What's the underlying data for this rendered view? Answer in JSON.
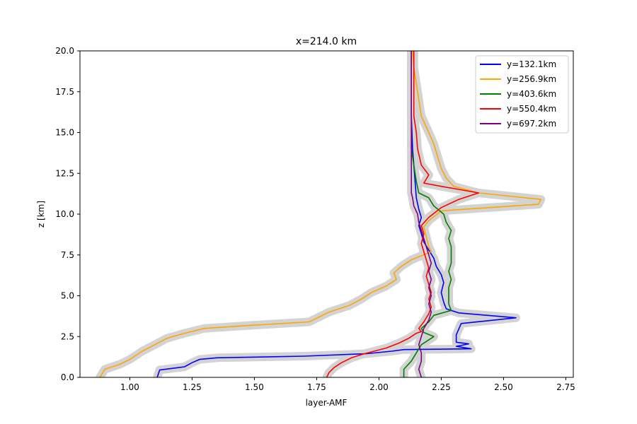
{
  "chart_data": {
    "type": "line",
    "title": "x=214.0 km",
    "xlabel": "layer-AMF",
    "ylabel": "z [km]",
    "xlim": [
      0.8,
      2.78
    ],
    "ylim": [
      0,
      20
    ],
    "xticks": [
      "1.00",
      "1.25",
      "1.50",
      "1.75",
      "2.00",
      "2.25",
      "2.50",
      "2.75"
    ],
    "yticks": [
      "0.0",
      "2.5",
      "5.0",
      "7.5",
      "10.0",
      "12.5",
      "15.0",
      "17.5",
      "20.0"
    ],
    "grid": false,
    "legend_position": "top-right",
    "uncertainty_band_color": "#d3d3d3",
    "series": [
      {
        "name": "y=132.1km",
        "color": "#0000ff",
        "points": [
          [
            1.11,
            0
          ],
          [
            1.12,
            0.45
          ],
          [
            1.22,
            0.65
          ],
          [
            1.25,
            0.9
          ],
          [
            1.28,
            1.1
          ],
          [
            1.35,
            1.2
          ],
          [
            1.7,
            1.3
          ],
          [
            1.95,
            1.45
          ],
          [
            2.05,
            1.6
          ],
          [
            2.1,
            1.7
          ],
          [
            2.37,
            1.75
          ],
          [
            2.31,
            1.9
          ],
          [
            2.36,
            2.05
          ],
          [
            2.31,
            2.15
          ],
          [
            2.31,
            2.6
          ],
          [
            2.33,
            3.3
          ],
          [
            2.55,
            3.65
          ],
          [
            2.32,
            3.95
          ],
          [
            2.27,
            4.2
          ],
          [
            2.26,
            4.6
          ],
          [
            2.25,
            5.2
          ],
          [
            2.26,
            5.8
          ],
          [
            2.25,
            6.3
          ],
          [
            2.23,
            6.8
          ],
          [
            2.22,
            7.3
          ],
          [
            2.2,
            7.8
          ],
          [
            2.18,
            8.3
          ],
          [
            2.17,
            8.8
          ],
          [
            2.16,
            9.3
          ],
          [
            2.17,
            9.8
          ],
          [
            2.16,
            10.3
          ],
          [
            2.15,
            11.0
          ],
          [
            2.145,
            12.0
          ],
          [
            2.14,
            13.0
          ],
          [
            2.135,
            14.0
          ],
          [
            2.13,
            16.0
          ],
          [
            2.13,
            18.0
          ],
          [
            2.13,
            20.0
          ]
        ]
      },
      {
        "name": "y=256.9km",
        "color": "#ffa500",
        "points": [
          [
            0.88,
            0
          ],
          [
            0.9,
            0.5
          ],
          [
            0.96,
            0.8
          ],
          [
            1.0,
            1.1
          ],
          [
            1.05,
            1.6
          ],
          [
            1.1,
            2.0
          ],
          [
            1.15,
            2.4
          ],
          [
            1.22,
            2.7
          ],
          [
            1.3,
            3.0
          ],
          [
            1.5,
            3.2
          ],
          [
            1.72,
            3.4
          ],
          [
            1.76,
            3.7
          ],
          [
            1.8,
            4.0
          ],
          [
            1.88,
            4.4
          ],
          [
            1.93,
            4.8
          ],
          [
            1.97,
            5.2
          ],
          [
            2.03,
            5.6
          ],
          [
            2.07,
            6.0
          ],
          [
            2.06,
            6.4
          ],
          [
            2.09,
            6.8
          ],
          [
            2.13,
            7.2
          ],
          [
            2.21,
            7.7
          ],
          [
            2.2,
            8.0
          ],
          [
            2.19,
            8.6
          ],
          [
            2.18,
            9.2
          ],
          [
            2.2,
            9.6
          ],
          [
            2.25,
            10.2
          ],
          [
            2.64,
            10.6
          ],
          [
            2.65,
            10.9
          ],
          [
            2.4,
            11.3
          ],
          [
            2.3,
            11.7
          ],
          [
            2.27,
            12.2
          ],
          [
            2.25,
            12.8
          ],
          [
            2.24,
            13.3
          ],
          [
            2.23,
            13.8
          ],
          [
            2.22,
            14.3
          ],
          [
            2.2,
            15.0
          ],
          [
            2.17,
            16.0
          ],
          [
            2.16,
            17.0
          ],
          [
            2.15,
            18.0
          ],
          [
            2.14,
            19.0
          ],
          [
            2.135,
            20.0
          ]
        ]
      },
      {
        "name": "y=403.6km",
        "color": "#008000",
        "points": [
          [
            2.1,
            0
          ],
          [
            2.1,
            0.5
          ],
          [
            2.13,
            1.0
          ],
          [
            2.15,
            1.5
          ],
          [
            2.17,
            2.0
          ],
          [
            2.22,
            2.5
          ],
          [
            2.18,
            2.75
          ],
          [
            2.17,
            3.0
          ],
          [
            2.2,
            3.4
          ],
          [
            2.22,
            3.8
          ],
          [
            2.29,
            4.1
          ],
          [
            2.28,
            4.5
          ],
          [
            2.28,
            5.0
          ],
          [
            2.28,
            5.5
          ],
          [
            2.29,
            6.0
          ],
          [
            2.28,
            6.5
          ],
          [
            2.29,
            7.0
          ],
          [
            2.29,
            7.5
          ],
          [
            2.29,
            8.0
          ],
          [
            2.28,
            8.5
          ],
          [
            2.29,
            9.0
          ],
          [
            2.27,
            9.5
          ],
          [
            2.26,
            10.0
          ],
          [
            2.22,
            10.5
          ],
          [
            2.2,
            11.0
          ],
          [
            2.16,
            11.3
          ],
          [
            2.15,
            12.0
          ],
          [
            2.14,
            13.0
          ],
          [
            2.13,
            14.0
          ],
          [
            2.13,
            16.0
          ],
          [
            2.13,
            18.0
          ],
          [
            2.13,
            20.0
          ]
        ]
      },
      {
        "name": "y=550.4km",
        "color": "#ff0000",
        "points": [
          [
            1.79,
            0
          ],
          [
            1.8,
            0.3
          ],
          [
            1.82,
            0.6
          ],
          [
            1.85,
            0.9
          ],
          [
            1.89,
            1.2
          ],
          [
            1.93,
            1.4
          ],
          [
            1.98,
            1.6
          ],
          [
            2.03,
            1.8
          ],
          [
            2.08,
            2.1
          ],
          [
            2.12,
            2.4
          ],
          [
            2.15,
            2.7
          ],
          [
            2.17,
            2.8
          ],
          [
            2.16,
            3.0
          ],
          [
            2.18,
            3.4
          ],
          [
            2.2,
            3.9
          ],
          [
            2.21,
            4.3
          ],
          [
            2.2,
            4.8
          ],
          [
            2.21,
            5.2
          ],
          [
            2.2,
            5.7
          ],
          [
            2.19,
            6.2
          ],
          [
            2.2,
            6.7
          ],
          [
            2.19,
            7.2
          ],
          [
            2.18,
            7.7
          ],
          [
            2.17,
            8.2
          ],
          [
            2.18,
            8.8
          ],
          [
            2.17,
            9.3
          ],
          [
            2.2,
            9.8
          ],
          [
            2.25,
            10.4
          ],
          [
            2.32,
            10.9
          ],
          [
            2.4,
            11.3
          ],
          [
            2.25,
            11.7
          ],
          [
            2.18,
            11.9
          ],
          [
            2.2,
            12.4
          ],
          [
            2.17,
            13.0
          ],
          [
            2.155,
            14.0
          ],
          [
            2.15,
            15.0
          ],
          [
            2.14,
            16.0
          ],
          [
            2.14,
            17.0
          ],
          [
            2.14,
            18.0
          ],
          [
            2.14,
            19.0
          ],
          [
            2.14,
            20.0
          ]
        ]
      },
      {
        "name": "y=697.2km",
        "color": "#800080",
        "points": [
          [
            2.17,
            0
          ],
          [
            2.16,
            0.5
          ],
          [
            2.17,
            1.0
          ],
          [
            2.17,
            1.5
          ],
          [
            2.16,
            2.0
          ],
          [
            2.17,
            2.5
          ],
          [
            2.18,
            3.0
          ],
          [
            2.2,
            3.5
          ],
          [
            2.21,
            4.0
          ],
          [
            2.2,
            4.5
          ],
          [
            2.21,
            5.0
          ],
          [
            2.2,
            5.5
          ],
          [
            2.21,
            6.0
          ],
          [
            2.2,
            6.5
          ],
          [
            2.21,
            7.0
          ],
          [
            2.2,
            7.5
          ],
          [
            2.19,
            8.0
          ],
          [
            2.18,
            8.5
          ],
          [
            2.17,
            9.0
          ],
          [
            2.16,
            9.5
          ],
          [
            2.155,
            10.0
          ],
          [
            2.14,
            10.5
          ],
          [
            2.135,
            11.0
          ],
          [
            2.13,
            11.3
          ],
          [
            2.13,
            12.0
          ],
          [
            2.13,
            14.0
          ],
          [
            2.13,
            16.0
          ],
          [
            2.13,
            18.0
          ],
          [
            2.13,
            20.0
          ]
        ]
      }
    ]
  }
}
